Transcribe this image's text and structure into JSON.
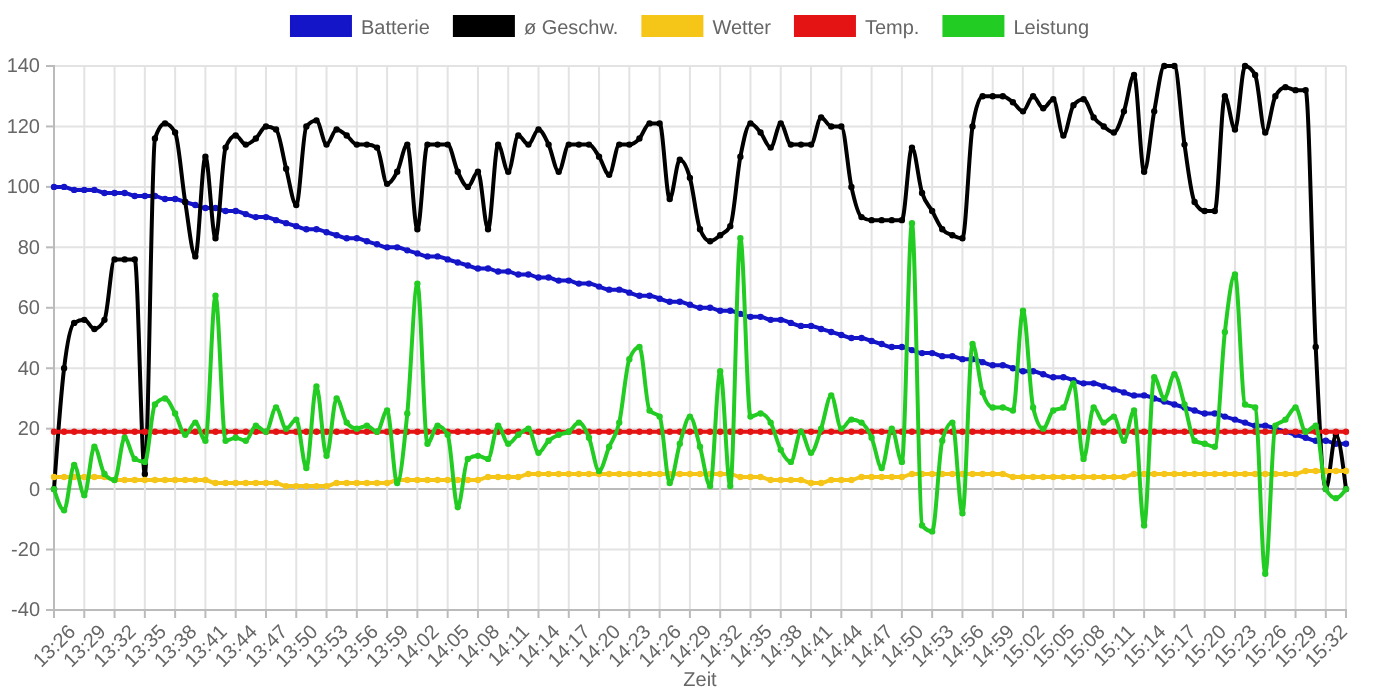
{
  "chart_data": {
    "type": "line",
    "xlabel": "Zeit",
    "legend": "top",
    "grid": true,
    "marker": "circle",
    "line_style": "solid",
    "ylim": [
      -40,
      140
    ],
    "yticks": [
      -40,
      -20,
      0,
      20,
      40,
      60,
      80,
      100,
      120,
      140
    ],
    "categories": [
      "13:26",
      null,
      null,
      "13:29",
      null,
      null,
      "13:32",
      null,
      null,
      "13:35",
      null,
      null,
      "13:38",
      null,
      null,
      "13:41",
      null,
      null,
      "13:44",
      null,
      null,
      "13:47",
      null,
      null,
      "13:50",
      null,
      null,
      "13:53",
      null,
      null,
      "13:56",
      null,
      null,
      "13:59",
      null,
      null,
      "14:02",
      null,
      null,
      "14:05",
      null,
      null,
      "14:08",
      null,
      null,
      "14:11",
      null,
      null,
      "14:14",
      null,
      null,
      "14:17",
      null,
      null,
      "14:20",
      null,
      null,
      "14:23",
      null,
      null,
      "14:26",
      null,
      null,
      "14:29",
      null,
      null,
      "14:32",
      null,
      null,
      "14:35",
      null,
      null,
      "14:38",
      null,
      null,
      "14:41",
      null,
      null,
      "14:44",
      null,
      null,
      "14:47",
      null,
      null,
      "14:50",
      null,
      null,
      "14:53",
      null,
      null,
      "14:56",
      null,
      null,
      "14:59",
      null,
      null,
      "15:02",
      null,
      null,
      "15:05",
      null,
      null,
      "15:08",
      null,
      null,
      "15:11",
      null,
      null,
      "15:14",
      null,
      null,
      "15:17",
      null,
      null,
      "15:20",
      null,
      null,
      "15:23",
      null,
      null,
      "15:26",
      null,
      null,
      "15:29",
      null,
      null,
      "15:32",
      null,
      null
    ],
    "series": [
      {
        "name": "Batterie",
        "color": "#1414c8",
        "values": [
          100,
          100,
          99,
          99,
          99,
          98,
          98,
          98,
          97,
          97,
          97,
          96,
          96,
          95,
          94,
          93,
          93,
          92,
          92,
          91,
          90,
          90,
          89,
          88,
          87,
          86,
          86,
          85,
          84,
          83,
          83,
          82,
          81,
          80,
          80,
          79,
          78,
          77,
          77,
          76,
          75,
          74,
          73,
          73,
          72,
          72,
          71,
          71,
          70,
          70,
          69,
          69,
          68,
          68,
          67,
          66,
          66,
          65,
          64,
          64,
          63,
          62,
          62,
          61,
          60,
          60,
          59,
          59,
          58,
          57,
          57,
          56,
          56,
          55,
          54,
          54,
          53,
          52,
          51,
          50,
          50,
          49,
          48,
          47,
          47,
          46,
          45,
          45,
          44,
          44,
          43,
          43,
          42,
          41,
          41,
          40,
          39,
          39,
          38,
          37,
          37,
          36,
          35,
          35,
          34,
          33,
          32,
          31,
          31,
          30,
          29,
          28,
          27,
          26,
          25,
          25,
          24,
          23,
          22,
          21,
          21,
          20,
          19,
          18,
          17,
          16,
          16,
          15,
          15
        ]
      },
      {
        "name": "ø Geschw.",
        "color": "#000000",
        "values": [
          0,
          40,
          55,
          56,
          53,
          56,
          76,
          76,
          76,
          5,
          116,
          121,
          118,
          95,
          77,
          110,
          83,
          113,
          117,
          114,
          116,
          120,
          119,
          106,
          94,
          120,
          122,
          114,
          119,
          117,
          114,
          114,
          113,
          101,
          105,
          114,
          86,
          114,
          114,
          114,
          105,
          100,
          105,
          86,
          114,
          105,
          117,
          114,
          119,
          114,
          105,
          114,
          114,
          114,
          110,
          104,
          114,
          114,
          116,
          121,
          121,
          96,
          109,
          103,
          86,
          82,
          84,
          87,
          110,
          121,
          118,
          113,
          121,
          114,
          114,
          114,
          123,
          120,
          120,
          100,
          90,
          89,
          89,
          89,
          89,
          113,
          98,
          92,
          86,
          84,
          83,
          120,
          130,
          130,
          130,
          128,
          125,
          130,
          126,
          129,
          117,
          127,
          129,
          123,
          120,
          118,
          125,
          137,
          105,
          125,
          140,
          140,
          114,
          95,
          92,
          92,
          130,
          119,
          140,
          137,
          118,
          130,
          133,
          132,
          132,
          47,
          0,
          18,
          0
        ]
      },
      {
        "name": "Wetter",
        "color": "#f5c518",
        "values": [
          4,
          4,
          4,
          4,
          4,
          4,
          3,
          3,
          3,
          3,
          3,
          3,
          3,
          3,
          3,
          3,
          2,
          2,
          2,
          2,
          2,
          2,
          2,
          1,
          1,
          1,
          1,
          1,
          2,
          2,
          2,
          2,
          2,
          2,
          3,
          3,
          3,
          3,
          3,
          3,
          3,
          3,
          3,
          4,
          4,
          4,
          4,
          5,
          5,
          5,
          5,
          5,
          5,
          5,
          5,
          5,
          5,
          5,
          5,
          5,
          5,
          5,
          5,
          5,
          5,
          5,
          5,
          5,
          4,
          4,
          4,
          3,
          3,
          3,
          3,
          2,
          2,
          3,
          3,
          3,
          4,
          4,
          4,
          4,
          4,
          5,
          5,
          5,
          5,
          5,
          5,
          5,
          5,
          5,
          5,
          4,
          4,
          4,
          4,
          4,
          4,
          4,
          4,
          4,
          4,
          4,
          4,
          5,
          5,
          5,
          5,
          5,
          5,
          5,
          5,
          5,
          5,
          5,
          5,
          5,
          5,
          5,
          5,
          5,
          6,
          6,
          6,
          6,
          6
        ]
      },
      {
        "name": "Temp.",
        "color": "#e51414",
        "values": [
          19,
          19,
          19,
          19,
          19,
          19,
          19,
          19,
          19,
          19,
          19,
          19,
          19,
          19,
          19,
          19,
          19,
          19,
          19,
          19,
          19,
          19,
          19,
          19,
          19,
          19,
          19,
          19,
          19,
          19,
          19,
          19,
          19,
          19,
          19,
          19,
          19,
          19,
          19,
          19,
          19,
          19,
          19,
          19,
          19,
          19,
          19,
          19,
          19,
          19,
          19,
          19,
          19,
          19,
          19,
          19,
          19,
          19,
          19,
          19,
          19,
          19,
          19,
          19,
          19,
          19,
          19,
          19,
          19,
          19,
          19,
          19,
          19,
          19,
          19,
          19,
          19,
          19,
          19,
          19,
          19,
          19,
          19,
          19,
          19,
          19,
          19,
          19,
          19,
          19,
          19,
          19,
          19,
          19,
          19,
          19,
          19,
          19,
          19,
          19,
          19,
          19,
          19,
          19,
          19,
          19,
          19,
          19,
          19,
          19,
          19,
          19,
          19,
          19,
          19,
          19,
          19,
          19,
          19,
          19,
          19,
          19,
          19,
          19,
          19,
          19,
          19,
          19,
          19
        ]
      },
      {
        "name": "Leistung",
        "color": "#22cc22",
        "values": [
          0,
          -7,
          8,
          -2,
          14,
          5,
          3,
          17,
          10,
          9,
          28,
          30,
          25,
          18,
          22,
          16,
          64,
          16,
          17,
          16,
          21,
          19,
          27,
          20,
          23,
          7,
          34,
          11,
          30,
          22,
          20,
          21,
          19,
          26,
          2,
          25,
          68,
          15,
          21,
          18,
          -6,
          10,
          11,
          10,
          21,
          15,
          18,
          20,
          12,
          16,
          18,
          19,
          22,
          17,
          6,
          14,
          22,
          43,
          47,
          26,
          24,
          2,
          15,
          24,
          14,
          1,
          39,
          1,
          83,
          24,
          25,
          22,
          13,
          9,
          19,
          12,
          20,
          31,
          20,
          23,
          22,
          17,
          7,
          20,
          9,
          88,
          -12,
          -14,
          16,
          22,
          -8,
          48,
          32,
          27,
          27,
          26,
          59,
          27,
          20,
          26,
          27,
          35,
          10,
          27,
          22,
          24,
          16,
          26,
          -12,
          37,
          30,
          38,
          28,
          16,
          15,
          14,
          52,
          71,
          28,
          27,
          -28,
          21,
          23,
          27,
          19,
          21,
          0,
          -3,
          0
        ]
      }
    ]
  }
}
